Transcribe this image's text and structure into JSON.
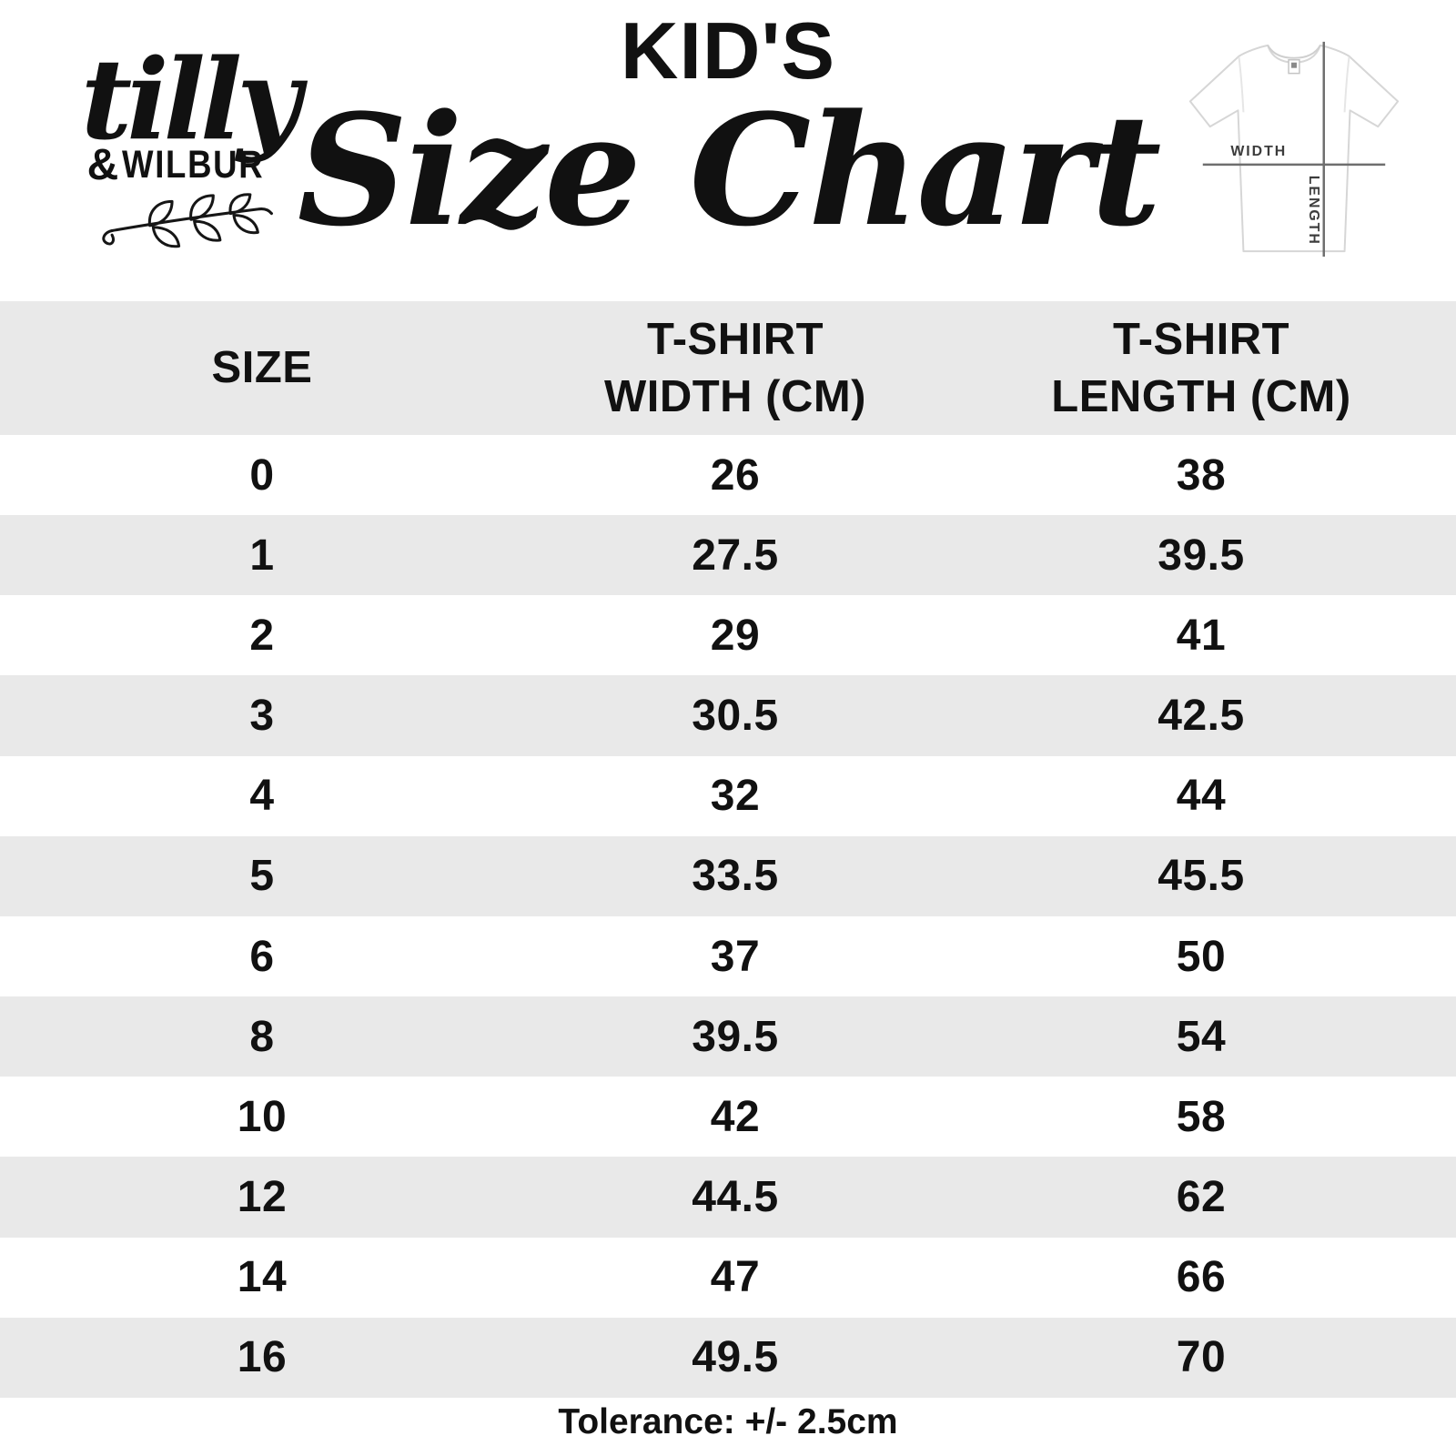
{
  "brand": {
    "script_name": "tilly",
    "ampersand": "&",
    "rest_name": "WILBUR"
  },
  "header": {
    "kicker": "KID'S",
    "title": "Size Chart"
  },
  "tshirt_diagram": {
    "width_label": "WIDTH",
    "length_label": "LENGTH"
  },
  "table": {
    "col_headers": [
      "SIZE",
      "T-SHIRT\nWIDTH (CM)",
      "T-SHIRT\nLENGTH (CM)"
    ],
    "rows": [
      [
        "0",
        "26",
        "38"
      ],
      [
        "1",
        "27.5",
        "39.5"
      ],
      [
        "2",
        "29",
        "41"
      ],
      [
        "3",
        "30.5",
        "42.5"
      ],
      [
        "4",
        "32",
        "44"
      ],
      [
        "5",
        "33.5",
        "45.5"
      ],
      [
        "6",
        "37",
        "50"
      ],
      [
        "8",
        "39.5",
        "54"
      ],
      [
        "10",
        "42",
        "58"
      ],
      [
        "12",
        "44.5",
        "62"
      ],
      [
        "14",
        "47",
        "66"
      ],
      [
        "16",
        "49.5",
        "70"
      ]
    ]
  },
  "footer": {
    "tolerance_note": "Tolerance: +/- 2.5cm"
  },
  "colors": {
    "ink": "#111111",
    "row_stripe": "#e9e9e9",
    "diagram_line": "#6e6e6e",
    "background": "#ffffff"
  },
  "chart_data": {
    "type": "table",
    "title": "KID'S Size Chart",
    "columns": [
      "SIZE",
      "T-SHIRT WIDTH (CM)",
      "T-SHIRT LENGTH (CM)"
    ],
    "rows": [
      [
        0,
        26,
        38
      ],
      [
        1,
        27.5,
        39.5
      ],
      [
        2,
        29,
        41
      ],
      [
        3,
        30.5,
        42.5
      ],
      [
        4,
        32,
        44
      ],
      [
        5,
        33.5,
        45.5
      ],
      [
        6,
        37,
        50
      ],
      [
        8,
        39.5,
        54
      ],
      [
        10,
        42,
        58
      ],
      [
        12,
        44.5,
        62
      ],
      [
        14,
        47,
        66
      ],
      [
        16,
        49.5,
        70
      ]
    ],
    "note": "Tolerance: +/- 2.5cm"
  }
}
